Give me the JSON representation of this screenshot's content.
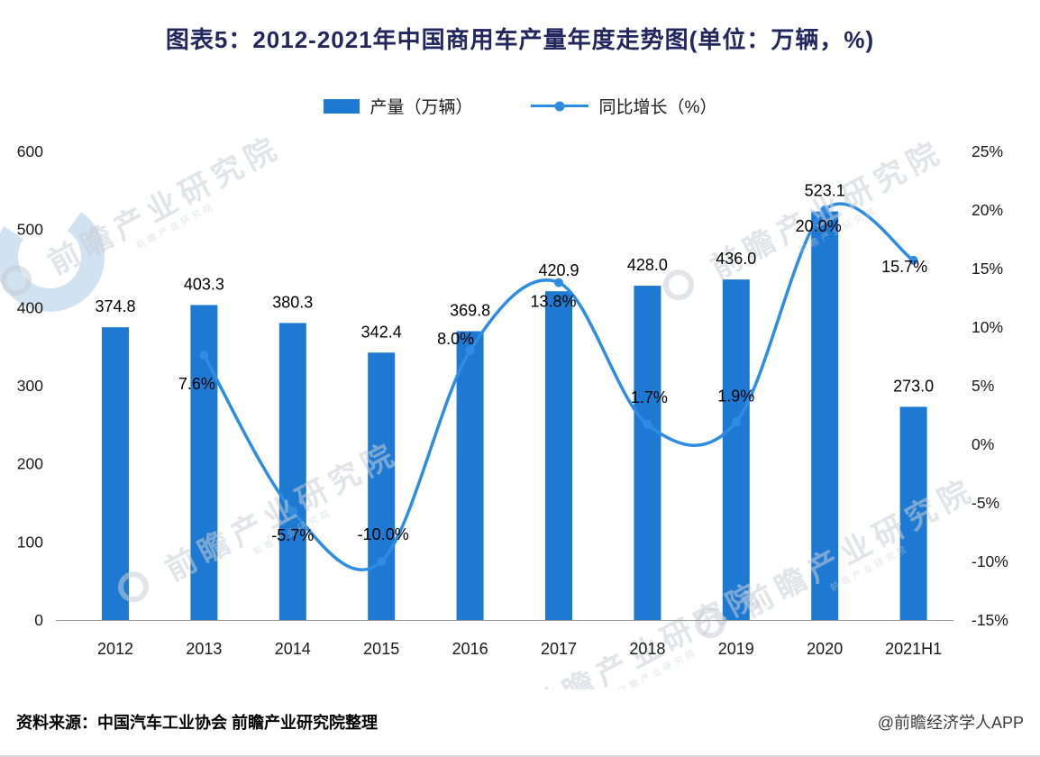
{
  "title": "图表5：2012-2021年中国商用车产量年度走势图(单位：万辆，%)",
  "legend": {
    "bar_label": "产量（万辆）",
    "line_label": "同比增长（%）"
  },
  "footer": {
    "source": "资料来源：中国汽车工业协会 前瞻产业研究院整理",
    "credit": "@前瞻经济学人APP"
  },
  "watermark": {
    "brand_text": "前瞻产业研究院"
  },
  "colors": {
    "bar": "#1d79d2",
    "line": "#2e8ce2",
    "title": "#23265f",
    "axis_text": "#1a1a1a",
    "label_text": "#000000",
    "watermark": "#c9ced6",
    "logo_arc": "#cfe0ef",
    "baseline": "#9a9a9a"
  },
  "chart_data": {
    "type": "bar",
    "combo": "bar+line",
    "title": "图表5：2012-2021年中国商用车产量年度走势图(单位：万辆，%)",
    "categories": [
      "2012",
      "2013",
      "2014",
      "2015",
      "2016",
      "2017",
      "2018",
      "2019",
      "2020",
      "2021H1"
    ],
    "series": [
      {
        "name": "产量（万辆）",
        "type": "bar",
        "axis": "left",
        "values": [
          374.8,
          403.3,
          380.3,
          342.4,
          369.8,
          420.9,
          428.0,
          436.0,
          523.1,
          273.0
        ],
        "labels": [
          "374.8",
          "403.3",
          "380.3",
          "342.4",
          "369.8",
          "420.9",
          "428.0",
          "436.0",
          "523.1",
          "273.0"
        ]
      },
      {
        "name": "同比增长（%）",
        "type": "line",
        "axis": "right",
        "values": [
          null,
          7.6,
          -5.7,
          -10.0,
          8.0,
          13.8,
          1.7,
          1.9,
          20.0,
          15.7
        ],
        "labels": [
          null,
          "7.6%",
          "-5.7%",
          "-10.0%",
          "8.0%",
          "13.8%",
          "1.7%",
          "1.9%",
          "20.0%",
          "15.7%"
        ]
      }
    ],
    "left_axis": {
      "min": 0,
      "max": 600,
      "step": 100
    },
    "right_axis": {
      "min": -15,
      "max": 25,
      "step": 5,
      "suffix": "%"
    },
    "grid": false,
    "legend_position": "top",
    "label_offsets": [
      null,
      [
        -8,
        32
      ],
      [
        0,
        27
      ],
      [
        2,
        -30
      ],
      [
        -16,
        -13
      ],
      [
        -6,
        21
      ],
      [
        2,
        -30
      ],
      [
        0,
        -29
      ],
      [
        -7,
        18
      ],
      [
        -10,
        7
      ]
    ]
  }
}
